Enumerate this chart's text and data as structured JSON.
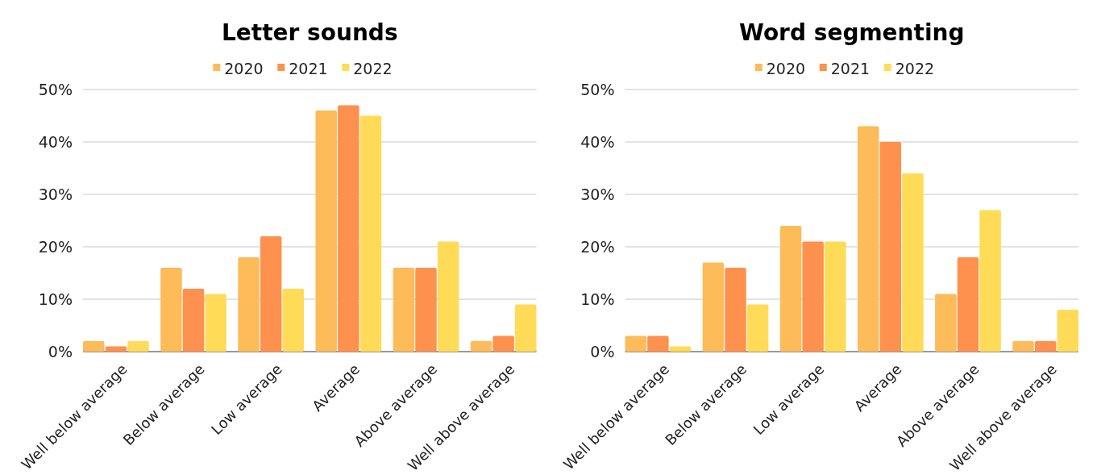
{
  "chart_data": [
    {
      "type": "bar",
      "title": "Letter sounds",
      "categories": [
        "Well below average",
        "Below average",
        "Low average",
        "Average",
        "Above average",
        "Well above average"
      ],
      "series": [
        {
          "name": "2020",
          "color": "#fdbb5a",
          "values": [
            2,
            16,
            18,
            46,
            16,
            2
          ]
        },
        {
          "name": "2021",
          "color": "#fe914d",
          "values": [
            1,
            12,
            22,
            47,
            16,
            3
          ]
        },
        {
          "name": "2022",
          "color": "#ffdb58",
          "values": [
            2,
            11,
            12,
            45,
            21,
            9
          ]
        }
      ],
      "ylim": [
        0,
        50
      ],
      "yticks": [
        {
          "value": 0,
          "label": "0%"
        },
        {
          "value": 10,
          "label": "10%"
        },
        {
          "value": 20,
          "label": "20%"
        },
        {
          "value": 30,
          "label": "30%"
        },
        {
          "value": 40,
          "label": "40%"
        },
        {
          "value": 50,
          "label": "50%"
        }
      ],
      "grid": "y",
      "legend": "top"
    },
    {
      "type": "bar",
      "title": "Word segmenting",
      "categories": [
        "Well below average",
        "Below average",
        "Low average",
        "Average",
        "Above average",
        "Well above average"
      ],
      "series": [
        {
          "name": "2020",
          "color": "#fdbb5a",
          "values": [
            3,
            17,
            24,
            43,
            11,
            2
          ]
        },
        {
          "name": "2021",
          "color": "#fe914d",
          "values": [
            3,
            16,
            21,
            40,
            18,
            2
          ]
        },
        {
          "name": "2022",
          "color": "#ffdb58",
          "values": [
            1,
            9,
            21,
            34,
            27,
            8
          ]
        }
      ],
      "ylim": [
        0,
        50
      ],
      "yticks": [
        {
          "value": 0,
          "label": "0%"
        },
        {
          "value": 10,
          "label": "10%"
        },
        {
          "value": 20,
          "label": "20%"
        },
        {
          "value": 30,
          "label": "30%"
        },
        {
          "value": 40,
          "label": "40%"
        },
        {
          "value": 50,
          "label": "50%"
        }
      ],
      "grid": "y",
      "legend": "top"
    }
  ]
}
